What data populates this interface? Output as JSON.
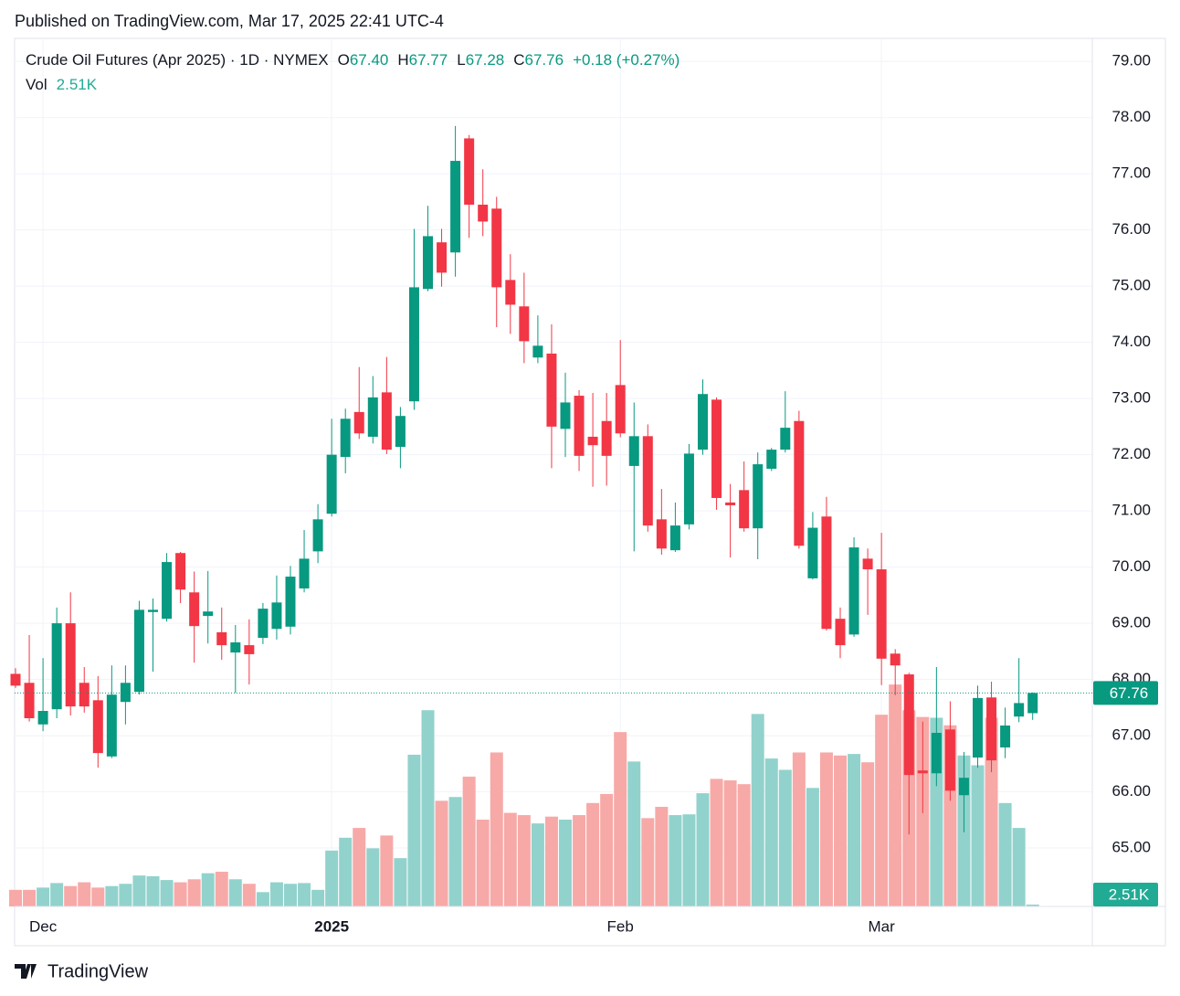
{
  "published": "Published on TradingView.com, Mar 17, 2025 22:41 UTC-4",
  "legend": {
    "title": "Crude Oil Futures (Apr 2025) · 1D · NYMEX",
    "ohlc": [
      {
        "key": "O",
        "value": "67.40"
      },
      {
        "key": "H",
        "value": "67.77"
      },
      {
        "key": "L",
        "value": "67.28"
      },
      {
        "key": "C",
        "value": "67.76"
      }
    ],
    "change": "+0.18 (+0.27%)",
    "volume": {
      "key": "Vol",
      "value": "2.51K"
    }
  },
  "brand": "TradingView",
  "chart_data": {
    "type": "candlestick",
    "categories": [
      null,
      null,
      "Dec",
      null,
      null,
      null,
      null,
      null,
      null,
      null,
      null,
      null,
      null,
      null,
      null,
      null,
      null,
      null,
      null,
      null,
      null,
      null,
      null,
      "2025",
      null,
      null,
      null,
      null,
      null,
      null,
      null,
      null,
      null,
      null,
      null,
      null,
      null,
      null,
      null,
      null,
      null,
      null,
      null,
      null,
      "Feb",
      null,
      null,
      null,
      null,
      null,
      null,
      null,
      null,
      null,
      null,
      null,
      null,
      null,
      null,
      null,
      null,
      null,
      null,
      "Mar",
      null,
      null,
      null,
      null,
      null,
      null,
      null,
      null,
      null,
      null,
      null
    ],
    "open": [
      68.1,
      67.94,
      67.2,
      67.47,
      69.0,
      67.94,
      67.63,
      66.63,
      67.6,
      67.78,
      69.2,
      69.08,
      70.25,
      69.55,
      69.13,
      68.84,
      68.48,
      68.61,
      68.74,
      68.9,
      68.94,
      69.62,
      70.28,
      70.95,
      71.96,
      72.76,
      72.32,
      73.11,
      72.14,
      72.95,
      74.95,
      75.78,
      75.6,
      77.63,
      76.45,
      76.38,
      75.11,
      74.64,
      73.73,
      73.8,
      72.46,
      73.05,
      72.32,
      72.6,
      73.24,
      71.8,
      72.33,
      70.85,
      70.3,
      70.76,
      72.09,
      72.98,
      71.15,
      71.37,
      70.69,
      71.75,
      72.09,
      72.6,
      69.8,
      70.9,
      69.08,
      68.8,
      70.15,
      69.96,
      68.46,
      68.09,
      66.38,
      66.33,
      67.11,
      65.94,
      66.61,
      67.68,
      66.79,
      67.34,
      67.4
    ],
    "high": [
      68.2,
      68.79,
      68.38,
      69.28,
      69.55,
      68.22,
      68.06,
      68.25,
      68.25,
      69.4,
      69.44,
      70.25,
      70.27,
      69.92,
      69.93,
      69.28,
      68.97,
      69.07,
      69.36,
      69.85,
      70.02,
      70.66,
      71.12,
      72.64,
      72.82,
      73.56,
      73.4,
      73.74,
      72.85,
      76.02,
      76.43,
      76.02,
      77.85,
      77.69,
      77.08,
      76.59,
      75.57,
      75.24,
      74.48,
      74.32,
      73.46,
      73.15,
      73.1,
      73.1,
      74.04,
      72.93,
      72.54,
      71.39,
      71.15,
      72.19,
      73.34,
      73.02,
      71.48,
      71.88,
      72.04,
      72.12,
      73.13,
      72.78,
      70.98,
      71.25,
      69.28,
      70.53,
      70.33,
      70.61,
      68.54,
      68.12,
      67.25,
      68.22,
      67.61,
      66.71,
      67.89,
      67.96,
      67.5,
      68.38,
      67.77
    ],
    "low": [
      67.85,
      67.25,
      67.08,
      67.31,
      67.36,
      67.41,
      66.43,
      66.6,
      67.2,
      67.73,
      68.14,
      69.03,
      69.36,
      68.3,
      68.64,
      68.35,
      67.76,
      67.91,
      68.63,
      68.71,
      68.8,
      69.55,
      70.07,
      70.9,
      71.67,
      72.28,
      72.2,
      72.01,
      71.76,
      72.8,
      74.91,
      74.99,
      75.17,
      75.86,
      75.89,
      74.27,
      74.15,
      73.63,
      73.63,
      71.76,
      71.96,
      71.71,
      71.43,
      71.45,
      72.31,
      70.28,
      70.63,
      70.22,
      70.27,
      70.67,
      72.0,
      71.02,
      70.17,
      70.63,
      70.14,
      71.71,
      72.04,
      70.33,
      69.78,
      68.87,
      68.38,
      68.76,
      69.15,
      67.9,
      67.72,
      65.24,
      65.62,
      66.1,
      65.84,
      65.28,
      66.43,
      66.35,
      66.6,
      67.24,
      67.28
    ],
    "close": [
      67.89,
      67.31,
      67.44,
      69.0,
      67.52,
      67.52,
      66.69,
      67.73,
      67.94,
      69.24,
      69.24,
      70.09,
      69.6,
      68.95,
      69.21,
      68.61,
      68.66,
      68.45,
      69.26,
      69.37,
      69.83,
      70.15,
      70.85,
      72.0,
      72.64,
      72.38,
      73.02,
      72.09,
      72.69,
      74.98,
      75.89,
      75.24,
      77.23,
      76.45,
      76.15,
      74.98,
      74.67,
      74.02,
      73.94,
      72.5,
      72.93,
      71.98,
      72.17,
      71.98,
      72.38,
      72.33,
      70.74,
      70.33,
      70.74,
      72.02,
      73.08,
      71.23,
      71.1,
      70.69,
      71.83,
      72.09,
      72.48,
      70.38,
      70.7,
      68.9,
      68.61,
      70.35,
      69.96,
      68.37,
      68.25,
      66.3,
      66.33,
      67.05,
      66.02,
      66.25,
      67.67,
      66.56,
      67.18,
      67.58,
      67.76
    ],
    "volume": [
      22,
      22,
      25,
      31,
      27,
      32,
      25,
      27,
      30,
      41,
      40,
      35,
      32,
      36,
      44,
      46,
      36,
      30,
      19,
      32,
      30,
      31,
      22,
      74,
      91,
      104,
      77,
      94,
      64,
      201,
      260,
      140,
      145,
      172,
      115,
      204,
      124,
      121,
      110,
      119,
      115,
      121,
      137,
      149,
      231,
      192,
      117,
      132,
      121,
      122,
      150,
      169,
      167,
      162,
      255,
      196,
      181,
      204,
      157,
      204,
      200,
      202,
      191,
      254,
      294,
      260,
      251,
      250,
      240,
      200,
      187,
      250,
      137,
      104,
      2.51
    ],
    "up_color": "#089981",
    "down_color": "#f23645",
    "up_volume_color": "#92d2cc",
    "down_volume_color": "#f7a9a7",
    "ylim": [
      63.96,
      79.41
    ],
    "yticks": [
      {
        "value": 65,
        "label": "65.00"
      },
      {
        "value": 66,
        "label": "66.00"
      },
      {
        "value": 67,
        "label": "67.00"
      },
      {
        "value": 68,
        "label": "68.00"
      },
      {
        "value": 69,
        "label": "69.00"
      },
      {
        "value": 70,
        "label": "70.00"
      },
      {
        "value": 71,
        "label": "71.00"
      },
      {
        "value": 72,
        "label": "72.00"
      },
      {
        "value": 73,
        "label": "73.00"
      },
      {
        "value": 74,
        "label": "74.00"
      },
      {
        "value": 75,
        "label": "75.00"
      },
      {
        "value": 76,
        "label": "76.00"
      },
      {
        "value": 77,
        "label": "77.00"
      },
      {
        "value": 78,
        "label": "78.00"
      },
      {
        "value": 79,
        "label": "79.00"
      }
    ],
    "volume_ylim": [
      0,
      1150
    ],
    "last_price": {
      "value": 67.76,
      "label": "67.76"
    },
    "last_volume_label": "2.51K",
    "grid": true
  }
}
